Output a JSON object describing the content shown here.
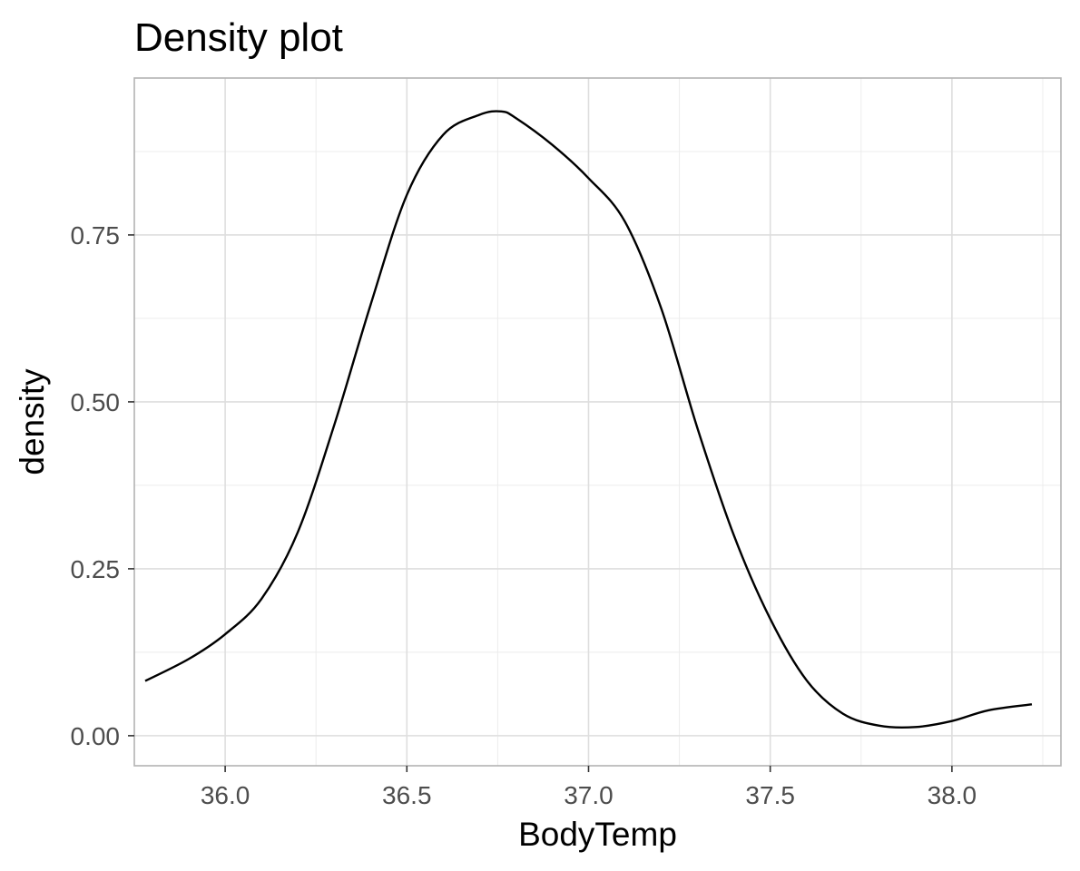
{
  "chart_data": {
    "type": "line",
    "title": "Density plot",
    "xlabel": "BodyTemp",
    "ylabel": "density",
    "xlim": [
      35.75,
      38.3
    ],
    "ylim": [
      -0.045,
      0.985
    ],
    "x_ticks": [
      36.0,
      36.5,
      37.0,
      37.5,
      38.0
    ],
    "x_tick_labels": [
      "36.0",
      "36.5",
      "37.0",
      "37.5",
      "38.0"
    ],
    "y_ticks": [
      0.0,
      0.25,
      0.5,
      0.75
    ],
    "y_tick_labels": [
      "0.00",
      "0.25",
      "0.50",
      "0.75"
    ],
    "grid": true,
    "series": [
      {
        "color": "#000000",
        "x": [
          35.78,
          35.9,
          36.0,
          36.1,
          36.2,
          36.3,
          36.4,
          36.5,
          36.6,
          36.7,
          36.76,
          36.8,
          36.9,
          37.0,
          37.1,
          37.2,
          37.3,
          37.4,
          37.5,
          37.6,
          37.7,
          37.8,
          37.9,
          38.0,
          38.1,
          38.22
        ],
        "y": [
          0.082,
          0.115,
          0.152,
          0.205,
          0.305,
          0.465,
          0.645,
          0.81,
          0.9,
          0.93,
          0.935,
          0.925,
          0.885,
          0.835,
          0.77,
          0.64,
          0.46,
          0.3,
          0.175,
          0.083,
          0.033,
          0.015,
          0.013,
          0.022,
          0.038,
          0.047
        ]
      }
    ]
  }
}
